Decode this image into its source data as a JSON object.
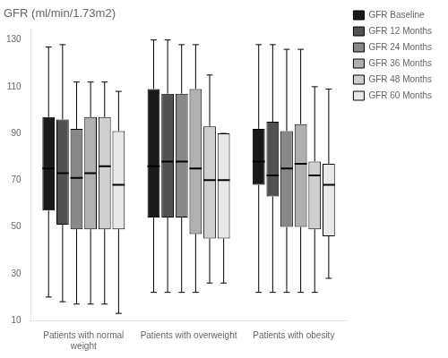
{
  "chart_data": {
    "type": "box",
    "title": "GFR (ml/min/1.73m2)",
    "categories": [
      "Patients with normal\nweight",
      "Patients with overweight",
      "Patients with obesity"
    ],
    "series": [
      {
        "name": "GFR Baseline",
        "color": "#1a1a1a",
        "values": [
          {
            "whislo": 20,
            "q1": 57,
            "med": 75,
            "q3": 97,
            "whishi": 127
          },
          {
            "whislo": 22,
            "q1": 54,
            "med": 76,
            "q3": 109,
            "whishi": 130
          },
          {
            "whislo": 22,
            "q1": 68,
            "med": 78,
            "q3": 92,
            "whishi": 128
          }
        ]
      },
      {
        "name": "GFR 12 Months",
        "color": "#525252",
        "values": [
          {
            "whislo": 18,
            "q1": 51,
            "med": 73,
            "q3": 96,
            "whishi": 128
          },
          {
            "whislo": 22,
            "q1": 54,
            "med": 78,
            "q3": 107,
            "whishi": 130
          },
          {
            "whislo": 22,
            "q1": 63,
            "med": 72,
            "q3": 95,
            "whishi": 128
          }
        ]
      },
      {
        "name": "GFR 24 Months",
        "color": "#888888",
        "values": [
          {
            "whislo": 17,
            "q1": 49,
            "med": 71,
            "q3": 92,
            "whishi": 112
          },
          {
            "whislo": 22,
            "q1": 54,
            "med": 78,
            "q3": 107,
            "whishi": 128
          },
          {
            "whislo": 22,
            "q1": 50,
            "med": 75,
            "q3": 91,
            "whishi": 126
          }
        ]
      },
      {
        "name": "GFR 36 Months",
        "color": "#b0b0b0",
        "values": [
          {
            "whislo": 17,
            "q1": 49,
            "med": 73,
            "q3": 97,
            "whishi": 112
          },
          {
            "whislo": 22,
            "q1": 47,
            "med": 75,
            "q3": 109,
            "whishi": 128
          },
          {
            "whislo": 22,
            "q1": 50,
            "med": 77,
            "q3": 94,
            "whishi": 126
          }
        ]
      },
      {
        "name": "GFR 48 Months",
        "color": "#cfcfcf",
        "values": [
          {
            "whislo": 17,
            "q1": 49,
            "med": 76,
            "q3": 97,
            "whishi": 112
          },
          {
            "whislo": 26,
            "q1": 45,
            "med": 70,
            "q3": 93,
            "whishi": 115
          },
          {
            "whislo": 22,
            "q1": 49,
            "med": 72,
            "q3": 78,
            "whishi": 110
          }
        ]
      },
      {
        "name": "GFR 60 Months",
        "color": "#e8e8e8",
        "values": [
          {
            "whislo": 13,
            "q1": 49,
            "med": 68,
            "q3": 91,
            "whishi": 108
          },
          {
            "whislo": 26,
            "q1": 45,
            "med": 70,
            "q3": 90,
            "whishi": 90
          },
          {
            "whislo": 28,
            "q1": 46,
            "med": 68,
            "q3": 77,
            "whishi": 109
          }
        ]
      }
    ],
    "ylim": [
      10,
      135
    ],
    "yticks": [
      10,
      30,
      50,
      70,
      90,
      110,
      130
    ],
    "grid": false,
    "legend": "right"
  }
}
